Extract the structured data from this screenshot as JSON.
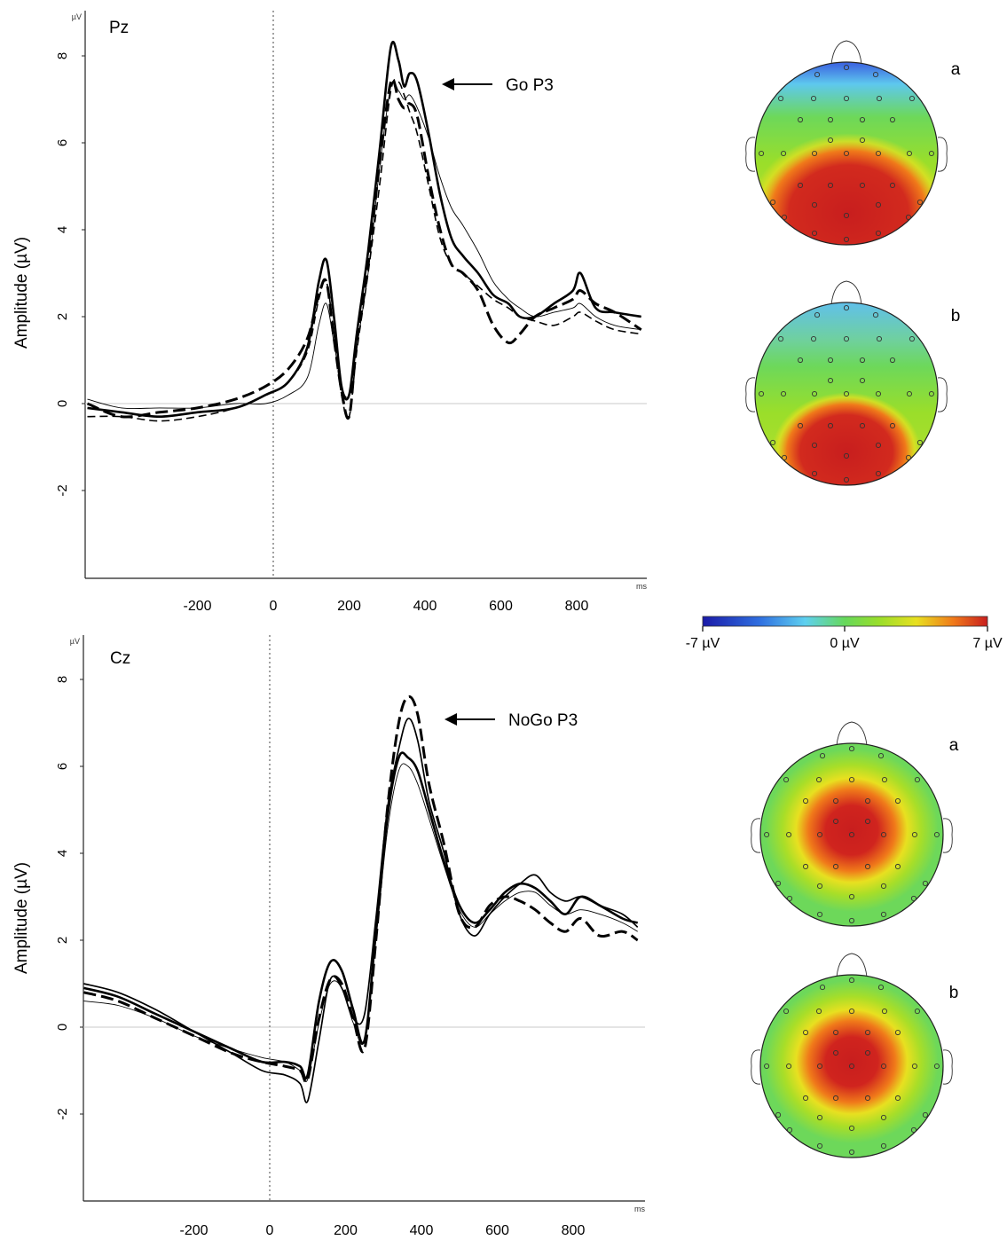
{
  "chart_data": [
    {
      "type": "line",
      "title": "Pz",
      "ylabel": "Amplitude (µV)",
      "yunit": "µV",
      "xunit": "ms",
      "xlim": [
        -490,
        970
      ],
      "ylim": [
        -4.0,
        8.8
      ],
      "xticks": [
        -200,
        0,
        200,
        400,
        600,
        800
      ],
      "yticks": [
        8,
        6,
        4,
        2,
        0,
        -2
      ],
      "annotation": {
        "text": "Go P3",
        "x": 380,
        "y": 7.5
      },
      "series": [
        {
          "style": "solid-bold",
          "x": [
            -490,
            -400,
            -300,
            -200,
            -100,
            -20,
            40,
            90,
            120,
            140,
            160,
            180,
            200,
            220,
            250,
            280,
            310,
            330,
            345,
            360,
            380,
            410,
            440,
            470,
            500,
            540,
            580,
            620,
            650,
            690,
            740,
            790,
            810,
            850,
            900,
            970
          ],
          "y": [
            -0.1,
            -0.2,
            -0.3,
            -0.2,
            -0.1,
            0.2,
            0.5,
            1.3,
            2.8,
            3.3,
            2.0,
            0.4,
            0.2,
            1.6,
            3.5,
            5.8,
            8.2,
            7.9,
            7.3,
            7.6,
            7.4,
            6.2,
            4.8,
            3.8,
            3.4,
            3.0,
            2.5,
            2.3,
            2.0,
            2.0,
            2.3,
            2.6,
            3.0,
            2.2,
            2.1,
            2.0
          ]
        },
        {
          "style": "dashed-bold",
          "x": [
            -490,
            -400,
            -300,
            -200,
            -100,
            -20,
            40,
            90,
            120,
            140,
            160,
            180,
            200,
            220,
            250,
            280,
            310,
            330,
            345,
            360,
            380,
            410,
            440,
            470,
            500,
            540,
            580,
            620,
            650,
            690,
            740,
            790,
            810,
            850,
            900,
            970
          ],
          "y": [
            0.0,
            -0.3,
            -0.2,
            -0.1,
            0.1,
            0.4,
            0.8,
            1.5,
            2.5,
            2.8,
            1.5,
            0.3,
            -0.3,
            1.4,
            3.2,
            5.5,
            7.4,
            7.0,
            6.8,
            6.9,
            6.6,
            5.2,
            4.0,
            3.2,
            3.0,
            2.6,
            1.8,
            1.4,
            1.6,
            2.0,
            2.2,
            2.4,
            2.6,
            2.3,
            2.1,
            1.7
          ]
        },
        {
          "style": "dashed",
          "x": [
            -490,
            -400,
            -300,
            -200,
            -100,
            -20,
            40,
            90,
            120,
            140,
            160,
            180,
            200,
            220,
            250,
            280,
            310,
            330,
            345,
            360,
            380,
            410,
            440,
            470,
            500,
            540,
            580,
            620,
            650,
            690,
            740,
            790,
            810,
            850,
            900,
            970
          ],
          "y": [
            -0.3,
            -0.3,
            -0.4,
            -0.3,
            -0.1,
            0.2,
            0.5,
            1.2,
            2.4,
            2.8,
            1.6,
            0.2,
            -0.3,
            1.2,
            3.0,
            5.0,
            7.2,
            7.4,
            7.1,
            6.7,
            6.2,
            5.0,
            3.8,
            3.2,
            3.0,
            2.7,
            2.4,
            2.2,
            2.0,
            1.9,
            1.8,
            2.0,
            2.1,
            1.9,
            1.7,
            1.6
          ]
        },
        {
          "style": "solid-thin",
          "x": [
            -490,
            -400,
            -300,
            -200,
            -100,
            -20,
            40,
            90,
            120,
            140,
            160,
            180,
            200,
            220,
            250,
            280,
            310,
            330,
            345,
            360,
            380,
            410,
            440,
            470,
            500,
            540,
            580,
            620,
            650,
            690,
            740,
            790,
            810,
            850,
            900,
            970
          ],
          "y": [
            0.1,
            -0.1,
            -0.1,
            -0.1,
            0.0,
            0.0,
            0.2,
            0.6,
            1.8,
            2.3,
            1.4,
            0.4,
            0.2,
            1.3,
            3.0,
            5.4,
            7.3,
            7.2,
            7.0,
            7.1,
            6.8,
            6.1,
            5.2,
            4.5,
            4.1,
            3.5,
            2.8,
            2.4,
            2.2,
            2.0,
            2.1,
            2.2,
            2.3,
            2.0,
            1.8,
            1.7
          ]
        }
      ]
    },
    {
      "type": "line",
      "title": "Cz",
      "ylabel": "Amplitude (µV)",
      "yunit": "µV",
      "xunit": "ms",
      "xlim": [
        -490,
        970
      ],
      "ylim": [
        -4.0,
        8.8
      ],
      "xticks": [
        -200,
        0,
        200,
        400,
        600,
        800
      ],
      "yticks": [
        8,
        6,
        4,
        2,
        0,
        -2
      ],
      "annotation": {
        "text": "NoGo P3",
        "x": 450,
        "y": 7.0
      },
      "series": [
        {
          "style": "solid",
          "x": [
            -490,
            -400,
            -300,
            -200,
            -100,
            -20,
            40,
            80,
            100,
            130,
            160,
            190,
            220,
            250,
            280,
            310,
            340,
            365,
            390,
            420,
            460,
            500,
            540,
            580,
            620,
            660,
            700,
            740,
            780,
            820,
            870,
            930,
            970
          ],
          "y": [
            1.0,
            0.8,
            0.4,
            -0.1,
            -0.6,
            -1.0,
            -1.1,
            -1.3,
            -1.7,
            -0.3,
            1.1,
            0.9,
            0.2,
            0.3,
            2.5,
            5.0,
            6.4,
            7.1,
            6.6,
            5.2,
            4.0,
            2.6,
            2.1,
            2.6,
            3.0,
            3.3,
            3.5,
            3.1,
            2.9,
            3.0,
            2.8,
            2.6,
            2.3
          ]
        },
        {
          "style": "dashed-bold",
          "x": [
            -490,
            -400,
            -300,
            -200,
            -100,
            -20,
            40,
            80,
            100,
            130,
            160,
            190,
            220,
            250,
            280,
            310,
            340,
            365,
            390,
            420,
            460,
            500,
            540,
            580,
            620,
            660,
            700,
            740,
            780,
            820,
            870,
            930,
            970
          ],
          "y": [
            0.8,
            0.6,
            0.2,
            -0.2,
            -0.6,
            -0.8,
            -0.9,
            -1.0,
            -1.2,
            0.2,
            1.1,
            1.0,
            0.2,
            -0.5,
            2.0,
            5.0,
            7.0,
            7.6,
            7.2,
            5.6,
            4.2,
            2.6,
            2.3,
            2.8,
            3.0,
            2.9,
            2.7,
            2.4,
            2.2,
            2.5,
            2.1,
            2.2,
            2.0
          ]
        },
        {
          "style": "solid-bold",
          "x": [
            -490,
            -400,
            -300,
            -200,
            -100,
            -20,
            40,
            80,
            100,
            130,
            160,
            190,
            220,
            250,
            280,
            310,
            340,
            365,
            390,
            420,
            460,
            500,
            540,
            580,
            620,
            660,
            700,
            740,
            780,
            820,
            870,
            930,
            970
          ],
          "y": [
            0.9,
            0.7,
            0.3,
            -0.1,
            -0.5,
            -0.8,
            -0.8,
            -0.9,
            -1.1,
            0.6,
            1.5,
            1.3,
            0.4,
            -0.3,
            2.2,
            4.8,
            6.2,
            6.2,
            5.9,
            5.0,
            3.8,
            2.8,
            2.4,
            2.7,
            3.1,
            3.3,
            3.2,
            2.9,
            2.6,
            3.0,
            2.8,
            2.5,
            2.4
          ]
        },
        {
          "style": "solid-thin",
          "x": [
            -490,
            -400,
            -300,
            -200,
            -100,
            -20,
            40,
            80,
            100,
            130,
            160,
            190,
            220,
            250,
            280,
            310,
            340,
            365,
            390,
            420,
            460,
            500,
            540,
            580,
            620,
            660,
            700,
            740,
            780,
            820,
            870,
            930,
            970
          ],
          "y": [
            0.6,
            0.5,
            0.2,
            -0.2,
            -0.5,
            -0.7,
            -0.8,
            -1.0,
            -1.2,
            0.1,
            1.0,
            0.9,
            0.1,
            -0.3,
            2.0,
            4.5,
            5.9,
            6.0,
            5.6,
            4.8,
            3.7,
            2.7,
            2.3,
            2.6,
            2.9,
            3.1,
            3.1,
            2.8,
            2.6,
            2.7,
            2.6,
            2.4,
            2.2
          ]
        }
      ]
    }
  ],
  "topomaps": [
    {
      "label": "a",
      "focus": "parietal",
      "values": {
        "front": -7,
        "center": 1.5,
        "back": 7
      }
    },
    {
      "label": "b",
      "focus": "parietal",
      "values": {
        "front": -5,
        "center": 1.5,
        "back": 6.5
      }
    },
    {
      "label": "a",
      "focus": "central",
      "values": {
        "front": 0,
        "center": 7,
        "back": 0
      }
    },
    {
      "label": "b",
      "focus": "central",
      "values": {
        "front": 0,
        "center": 7,
        "back": 0
      }
    }
  ],
  "colorbar": {
    "min_label": "-7 µV",
    "mid_label": "0 µV",
    "max_label": "7 µV",
    "colors": [
      "#1a1aa8",
      "#2f6fe0",
      "#5ed0f0",
      "#66d85a",
      "#7fdc2a",
      "#e8e020",
      "#f07a1a",
      "#c81e1e"
    ]
  }
}
